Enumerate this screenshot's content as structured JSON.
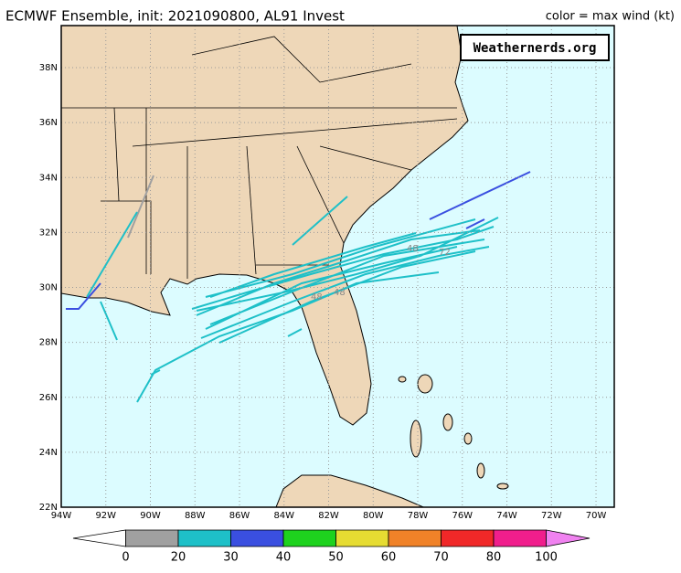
{
  "header": {
    "title": "ECMWF Ensemble, init: 2021090800, AL91 Invest",
    "legend_note": "color = max wind (kt)"
  },
  "watermark": "Weathernerds.org",
  "lat_labels": [
    "38N",
    "36N",
    "34N",
    "32N",
    "30N",
    "28N",
    "26N",
    "24N",
    "22N"
  ],
  "lon_labels": [
    "94W",
    "92W",
    "90W",
    "88W",
    "86W",
    "84W",
    "82W",
    "80W",
    "78W",
    "76W",
    "74W",
    "72W",
    "70W"
  ],
  "track_labels": [
    "48",
    "48",
    "48",
    "72"
  ],
  "colorbar": {
    "labels": [
      0,
      20,
      30,
      40,
      50,
      60,
      70,
      80,
      100
    ],
    "colors": [
      "#ffffff",
      "#a0a0a0",
      "#1ec0c8",
      "#3a4fe0",
      "#1ed21e",
      "#e6dc32",
      "#f08228",
      "#f02828",
      "#f01e8c",
      "#f082f0"
    ]
  }
}
